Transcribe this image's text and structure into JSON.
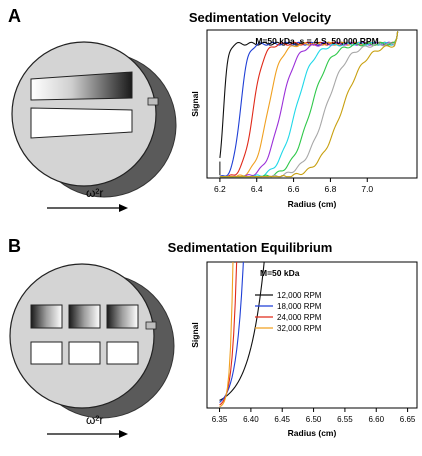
{
  "panels": [
    {
      "letter": "A",
      "title": "Sedimentation Velocity",
      "rotor_label": "ω²r"
    },
    {
      "letter": "B",
      "title": "Sedimentation Equilibrium",
      "rotor_label": "ω²r"
    }
  ],
  "chart_data": [
    {
      "type": "line",
      "annotation": "M=50 kDa, s = 4 S, 50,000 RPM",
      "xlabel": "Radius (cm)",
      "ylabel": "Signal",
      "xlim": [
        6.13,
        7.27
      ],
      "ylim": [
        0,
        1.08
      ],
      "xticks": [
        "6.2",
        "6.4",
        "6.6",
        "6.8",
        "7.0"
      ],
      "xtick_values": [
        6.2,
        6.4,
        6.6,
        6.8,
        7.0
      ],
      "meniscus": 6.2,
      "plateau": 0.98,
      "cell_end": 7.15,
      "series": [
        {
          "boundary": 6.22,
          "width": 0.012,
          "color": "#111111"
        },
        {
          "boundary": 6.31,
          "width": 0.02,
          "color": "#1f3fd6"
        },
        {
          "boundary": 6.38,
          "width": 0.028,
          "color": "#e02a1a"
        },
        {
          "boundary": 6.46,
          "width": 0.035,
          "color": "#f0a020"
        },
        {
          "boundary": 6.53,
          "width": 0.042,
          "color": "#9b30d9"
        },
        {
          "boundary": 6.61,
          "width": 0.048,
          "color": "#20d8e8"
        },
        {
          "boundary": 6.69,
          "width": 0.054,
          "color": "#2fc84a"
        },
        {
          "boundary": 6.77,
          "width": 0.06,
          "color": "#a8a8a8"
        },
        {
          "boundary": 6.86,
          "width": 0.066,
          "color": "#c8a010"
        }
      ]
    },
    {
      "type": "line",
      "annotation": "M=50 kDa",
      "xlabel": "Radius (cm)",
      "ylabel": "Signal",
      "xlim": [
        6.33,
        6.665
      ],
      "ylim": [
        0,
        1.0
      ],
      "xticks": [
        "6.35",
        "6.40",
        "6.45",
        "6.50",
        "6.55",
        "6.60",
        "6.65"
      ],
      "xtick_values": [
        6.35,
        6.4,
        6.45,
        6.5,
        6.55,
        6.6,
        6.65
      ],
      "r0": 6.35,
      "series": [
        {
          "name": "12,000 RPM",
          "color": "#111111",
          "c0": 0.052,
          "k": 6.5
        },
        {
          "name": "18,000 RPM",
          "color": "#1f3fd6",
          "c0": 0.038,
          "k": 13.5
        },
        {
          "name": "24,000 RPM",
          "color": "#e02a1a",
          "c0": 0.02,
          "k": 22.5
        },
        {
          "name": "32,000 RPM",
          "color": "#f0a020",
          "c0": 0.008,
          "k": 35.5
        }
      ]
    }
  ]
}
